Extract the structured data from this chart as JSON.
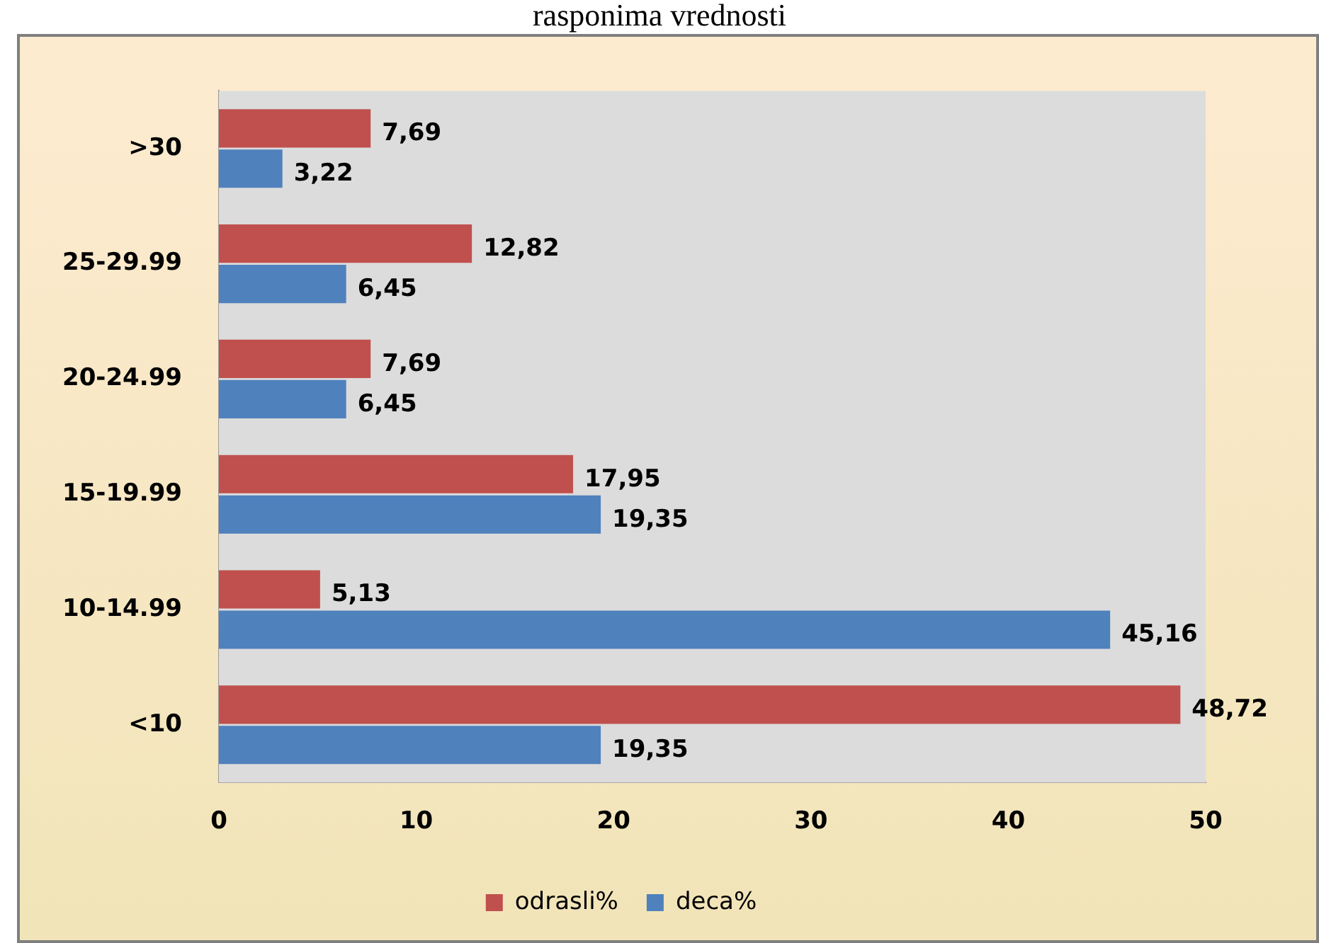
{
  "chart_data": {
    "type": "bar",
    "orientation": "horizontal",
    "title": "rasponima vrednosti",
    "categories": [
      ">30",
      "25-29.99",
      "20-24.99",
      "15-19.99",
      "10-14.99",
      "<10"
    ],
    "series": [
      {
        "name": "odrasli%",
        "color": "#c0504d",
        "values": [
          7.69,
          12.82,
          7.69,
          17.95,
          5.13,
          48.72
        ],
        "value_labels": [
          "7,69",
          "12,82",
          "7,69",
          "17,95",
          "5,13",
          "48,72"
        ]
      },
      {
        "name": "deca%",
        "color": "#4f81bd",
        "values": [
          3.22,
          6.45,
          6.45,
          19.35,
          45.16,
          19.35
        ],
        "value_labels": [
          "3,22",
          "6,45",
          "6,45",
          "19,35",
          "45,16",
          "19,35"
        ]
      }
    ],
    "xlim": [
      0,
      50
    ],
    "xticks": [
      0,
      10,
      20,
      30,
      40,
      50
    ],
    "grid": false,
    "legend": "bottom"
  }
}
